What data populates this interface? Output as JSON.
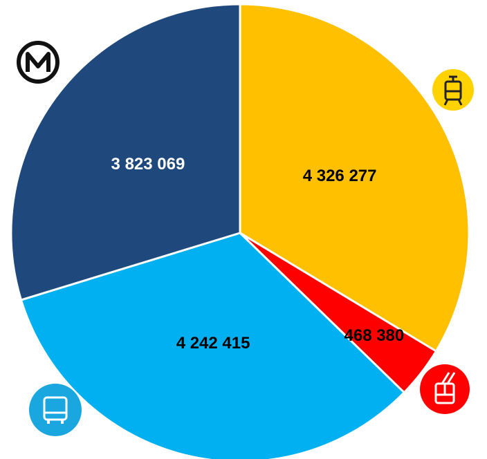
{
  "chart_data": {
    "type": "pie",
    "values": [
      4326277,
      468380,
      4242415,
      3823069
    ],
    "value_labels": [
      "4 326 277",
      "468 380",
      "4 242 415",
      "3 823 069"
    ],
    "colors": [
      "#ffc000",
      "#ff0000",
      "#00b0f0",
      "#1f497d"
    ],
    "label_colors": [
      "#000000",
      "#000000",
      "#000000",
      "#ffffff"
    ]
  }
}
